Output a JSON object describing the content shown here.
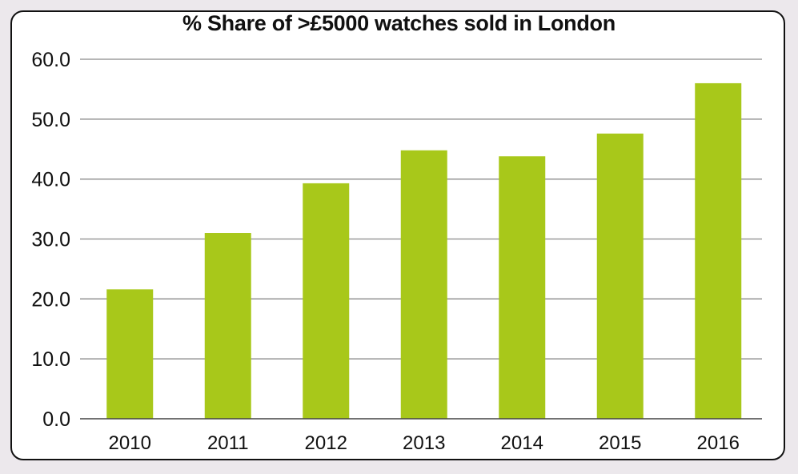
{
  "chart_data": {
    "type": "bar",
    "title": "% Share of >£5000 watches sold in London",
    "xlabel": "",
    "ylabel": "",
    "categories": [
      "2010",
      "2011",
      "2012",
      "2013",
      "2014",
      "2015",
      "2016"
    ],
    "values": [
      21.6,
      31.0,
      39.3,
      44.8,
      43.8,
      47.6,
      56.0
    ],
    "ylim": [
      0,
      60
    ],
    "yticks": [
      "0.0",
      "10.0",
      "20.0",
      "30.0",
      "40.0",
      "50.0",
      "60.0"
    ],
    "grid": true,
    "legend": "none",
    "colors": {
      "bar": "#a8c81a",
      "grid": "#8a8a8a",
      "axis": "#444444"
    }
  }
}
